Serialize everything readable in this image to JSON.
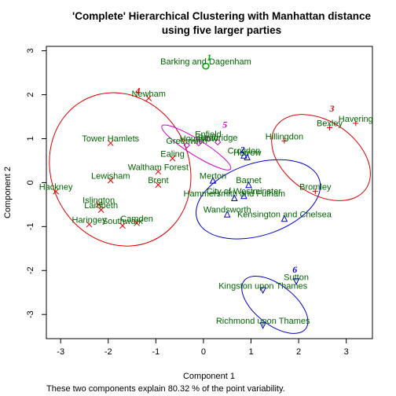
{
  "chart_data": {
    "type": "scatter",
    "title_line1": "'Complete' Hierarchical Clustering with Manhattan distance",
    "title_line2": "using five larger parties",
    "xlabel": "Component 1",
    "ylabel": "Component 2",
    "note": "These two components explain 80.32 % of the point variability.",
    "xlim": [
      -3.3,
      3.55
    ],
    "ylim": [
      -3.55,
      3.1
    ],
    "xticks": [
      "-3",
      "-2",
      "-1",
      "0",
      "1",
      "2",
      "3"
    ],
    "yticks": [
      "-3",
      "-2",
      "-1",
      "0",
      "1",
      "2",
      "3"
    ],
    "label_color": "#006400",
    "points": [
      {
        "name": "Barking and Dagenham",
        "x": 0.05,
        "y": 2.65,
        "cluster": 1
      },
      {
        "name": "Newham",
        "x": -1.15,
        "y": 1.92,
        "cluster": 4
      },
      {
        "name": "Tower Hamlets",
        "x": -1.95,
        "y": 0.9,
        "cluster": 4
      },
      {
        "name": "Lewisham",
        "x": -1.95,
        "y": 0.05,
        "cluster": 4
      },
      {
        "name": "Hackney",
        "x": -3.1,
        "y": -0.2,
        "cluster": 4
      },
      {
        "name": "Islington",
        "x": -2.2,
        "y": -0.5,
        "cluster": 4
      },
      {
        "name": "Lambeth",
        "x": -2.15,
        "y": -0.62,
        "cluster": 4
      },
      {
        "name": "Haringey",
        "x": -2.4,
        "y": -0.95,
        "cluster": 4
      },
      {
        "name": "Southwark",
        "x": -1.7,
        "y": -0.98,
        "cluster": 4
      },
      {
        "name": "Camden",
        "x": -1.4,
        "y": -0.92,
        "cluster": 4
      },
      {
        "name": "Ealing",
        "x": -0.65,
        "y": 0.55,
        "cluster": 4
      },
      {
        "name": "Brent",
        "x": -0.95,
        "y": -0.05,
        "cluster": 4
      },
      {
        "name": "Waltham Forest",
        "x": -0.95,
        "y": 0.25,
        "cluster": 4
      },
      {
        "name": "Enfield",
        "x": 0.1,
        "y": 1.0,
        "cluster": 5
      },
      {
        "name": "Greenwich",
        "x": -0.35,
        "y": 0.85,
        "cluster": 5
      },
      {
        "name": "Hounslow",
        "x": -0.1,
        "y": 0.9,
        "cluster": 5
      },
      {
        "name": "Redbridge",
        "x": 0.3,
        "y": 0.92,
        "cluster": 5
      },
      {
        "name": "Croydon",
        "x": 0.85,
        "y": 0.62,
        "cluster": 2
      },
      {
        "name": "Harrow",
        "x": 0.92,
        "y": 0.58,
        "cluster": 2
      },
      {
        "name": "Merton",
        "x": 0.2,
        "y": 0.05,
        "cluster": 2
      },
      {
        "name": "Barnet",
        "x": 0.95,
        "y": -0.05,
        "cluster": 2
      },
      {
        "name": "Hammersmith and Fulham",
        "x": 0.65,
        "y": -0.35,
        "cluster": 2
      },
      {
        "name": "City of Westminster",
        "x": 0.85,
        "y": -0.3,
        "cluster": 2
      },
      {
        "name": "Wandsworth",
        "x": 0.5,
        "y": -0.72,
        "cluster": 2
      },
      {
        "name": "Kensington and Chelsea",
        "x": 1.7,
        "y": -0.82,
        "cluster": 2
      },
      {
        "name": "Hillingdon",
        "x": 1.7,
        "y": 0.95,
        "cluster": 3
      },
      {
        "name": "Bexley",
        "x": 2.65,
        "y": 1.25,
        "cluster": 3
      },
      {
        "name": "Havering",
        "x": 3.2,
        "y": 1.35,
        "cluster": 3
      },
      {
        "name": "Bromley",
        "x": 2.35,
        "y": -0.2,
        "cluster": 3
      },
      {
        "name": "Sutton",
        "x": 1.95,
        "y": -2.25,
        "cluster": 6
      },
      {
        "name": "Kingston upon Thames",
        "x": 1.25,
        "y": -2.45,
        "cluster": 6
      },
      {
        "name": "Richmond upon Thames",
        "x": 1.25,
        "y": -3.25,
        "cluster": 6
      }
    ],
    "clusters": [
      {
        "id": "1",
        "color": "#00aa00",
        "marker": "circle",
        "label_x": 0.12,
        "label_y": 2.78,
        "cx": 0.05,
        "cy": 2.65,
        "rx": 0.07,
        "ry": 0.07,
        "angle": 0
      },
      {
        "id": "2",
        "color": "#0000cc",
        "marker": "triangle",
        "label_x": 0.82,
        "label_y": 0.68,
        "cx": 1.15,
        "cy": -0.38,
        "rx": 1.35,
        "ry": 0.82,
        "angle": -18
      },
      {
        "id": "3",
        "color": "#dd0000",
        "marker": "plus",
        "label_x": 2.7,
        "label_y": 1.62,
        "cx": 2.47,
        "cy": 0.57,
        "rx": 1.15,
        "ry": 0.82,
        "angle": 35
      },
      {
        "id": "4",
        "color": "#dd0000",
        "marker": "x",
        "label_x": -1.38,
        "label_y": 2.02,
        "cx": -1.75,
        "cy": 0.3,
        "rx": 1.45,
        "ry": 1.78,
        "angle": -25
      },
      {
        "id": "5",
        "color": "#cc00cc",
        "marker": "diamond",
        "label_x": 0.45,
        "label_y": 1.25,
        "cx": -0.15,
        "cy": 0.8,
        "rx": 0.85,
        "ry": 0.18,
        "angle": 32
      },
      {
        "id": "6",
        "color": "#0000cc",
        "marker": "triangle-down",
        "label_x": 1.92,
        "label_y": -2.05,
        "cx": 1.5,
        "cy": -2.78,
        "rx": 0.82,
        "ry": 0.45,
        "angle": 38
      }
    ]
  }
}
